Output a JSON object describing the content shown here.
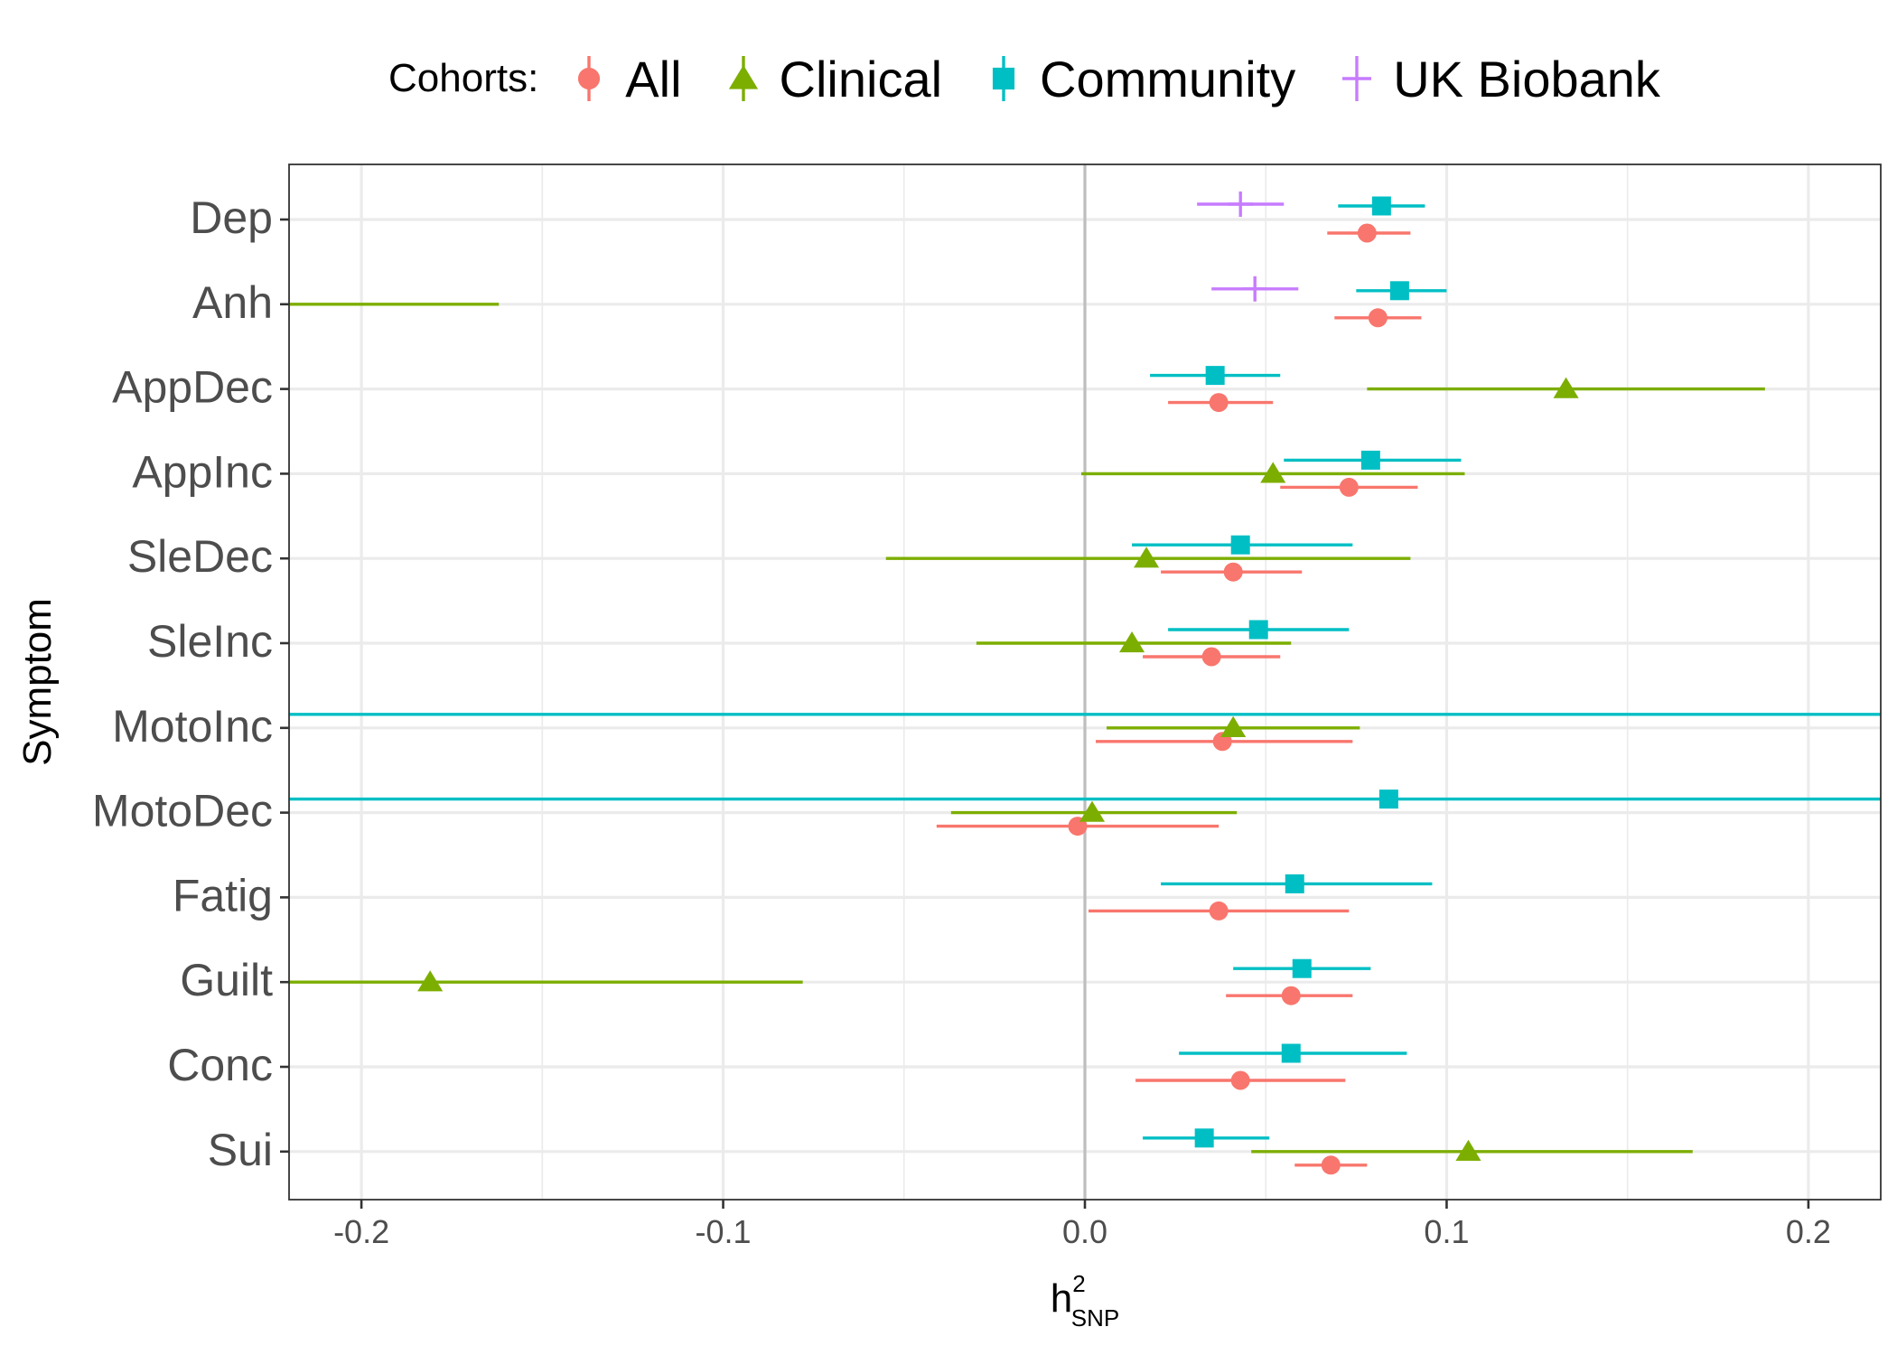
{
  "colors": {
    "All": "#F8766D",
    "Clinical": "#7CAE00",
    "Community": "#00BFC4",
    "UK Biobank": "#C77CFF",
    "grid": "#EBEBEB",
    "zero_line": "#BEBEBE",
    "axis_text": "#4D4D4D"
  },
  "legend": {
    "title": "Cohorts:",
    "items": [
      {
        "name": "All",
        "shape": "circle"
      },
      {
        "name": "Clinical",
        "shape": "triangle"
      },
      {
        "name": "Community",
        "shape": "square"
      },
      {
        "name": "UK Biobank",
        "shape": "cross"
      }
    ]
  },
  "chart_data": {
    "type": "scatter",
    "subtype": "forest plot with horizontal error bars",
    "title": "",
    "xlabel": "h",
    "xlabel_sup": "2",
    "xlabel_sub": "SNP",
    "ylabel": "Symptom",
    "xlim": [
      -0.22,
      0.22
    ],
    "x_ticks": [
      -0.2,
      -0.1,
      0.0,
      0.1,
      0.2
    ],
    "x_tick_labels": [
      "-0.2",
      "-0.1",
      "0.0",
      "0.1",
      "0.2"
    ],
    "categories": [
      "Dep",
      "Anh",
      "AppDec",
      "AppInc",
      "SleDec",
      "SleInc",
      "MotoInc",
      "MotoDec",
      "Fatig",
      "Guilt",
      "Conc",
      "Sui"
    ],
    "grid": true,
    "vline_at": 0,
    "legend_position": "top",
    "series": [
      {
        "name": "All",
        "shape": "circle",
        "points": [
          {
            "symptom": "Dep",
            "est": 0.078,
            "low": 0.067,
            "high": 0.09
          },
          {
            "symptom": "Anh",
            "est": 0.081,
            "low": 0.069,
            "high": 0.093
          },
          {
            "symptom": "AppDec",
            "est": 0.037,
            "low": 0.023,
            "high": 0.052
          },
          {
            "symptom": "AppInc",
            "est": 0.073,
            "low": 0.054,
            "high": 0.092
          },
          {
            "symptom": "SleDec",
            "est": 0.041,
            "low": 0.021,
            "high": 0.06
          },
          {
            "symptom": "SleInc",
            "est": 0.035,
            "low": 0.016,
            "high": 0.054
          },
          {
            "symptom": "MotoInc",
            "est": 0.038,
            "low": 0.003,
            "high": 0.074
          },
          {
            "symptom": "MotoDec",
            "est": -0.002,
            "low": -0.041,
            "high": 0.037
          },
          {
            "symptom": "Fatig",
            "est": 0.037,
            "low": 0.001,
            "high": 0.073
          },
          {
            "symptom": "Guilt",
            "est": 0.057,
            "low": 0.039,
            "high": 0.074
          },
          {
            "symptom": "Conc",
            "est": 0.043,
            "low": 0.014,
            "high": 0.072
          },
          {
            "symptom": "Sui",
            "est": 0.068,
            "low": 0.058,
            "high": 0.078
          }
        ]
      },
      {
        "name": "Clinical",
        "shape": "triangle",
        "points": [
          {
            "symptom": "Anh",
            "est": null,
            "low": -0.22,
            "high": -0.162
          },
          {
            "symptom": "AppDec",
            "est": 0.133,
            "low": 0.078,
            "high": 0.188
          },
          {
            "symptom": "AppInc",
            "est": 0.052,
            "low": -0.001,
            "high": 0.105
          },
          {
            "symptom": "SleDec",
            "est": 0.017,
            "low": -0.055,
            "high": 0.09
          },
          {
            "symptom": "SleInc",
            "est": 0.013,
            "low": -0.03,
            "high": 0.057
          },
          {
            "symptom": "MotoInc",
            "est": 0.041,
            "low": 0.006,
            "high": 0.076
          },
          {
            "symptom": "MotoDec",
            "est": 0.002,
            "low": -0.037,
            "high": 0.042
          },
          {
            "symptom": "Guilt",
            "est": -0.181,
            "low": -0.22,
            "high": -0.078
          },
          {
            "symptom": "Sui",
            "est": 0.106,
            "low": 0.046,
            "high": 0.168
          }
        ]
      },
      {
        "name": "Community",
        "shape": "square",
        "points": [
          {
            "symptom": "Dep",
            "est": 0.082,
            "low": 0.07,
            "high": 0.094
          },
          {
            "symptom": "Anh",
            "est": 0.087,
            "low": 0.075,
            "high": 0.1
          },
          {
            "symptom": "AppDec",
            "est": 0.036,
            "low": 0.018,
            "high": 0.054
          },
          {
            "symptom": "AppInc",
            "est": 0.079,
            "low": 0.055,
            "high": 0.104
          },
          {
            "symptom": "SleDec",
            "est": 0.043,
            "low": 0.013,
            "high": 0.074
          },
          {
            "symptom": "SleInc",
            "est": 0.048,
            "low": 0.023,
            "high": 0.073
          },
          {
            "symptom": "MotoInc",
            "est": null,
            "low": -0.22,
            "high": 0.22
          },
          {
            "symptom": "MotoDec",
            "est": 0.084,
            "low": -0.22,
            "high": 0.22
          },
          {
            "symptom": "Fatig",
            "est": 0.058,
            "low": 0.021,
            "high": 0.096
          },
          {
            "symptom": "Guilt",
            "est": 0.06,
            "low": 0.041,
            "high": 0.079
          },
          {
            "symptom": "Conc",
            "est": 0.057,
            "low": 0.026,
            "high": 0.089
          },
          {
            "symptom": "Sui",
            "est": 0.033,
            "low": 0.016,
            "high": 0.051
          }
        ]
      },
      {
        "name": "UK Biobank",
        "shape": "cross",
        "points": [
          {
            "symptom": "Dep",
            "est": 0.043,
            "low": 0.031,
            "high": 0.055
          },
          {
            "symptom": "Anh",
            "est": 0.047,
            "low": 0.035,
            "high": 0.059
          }
        ]
      }
    ]
  }
}
